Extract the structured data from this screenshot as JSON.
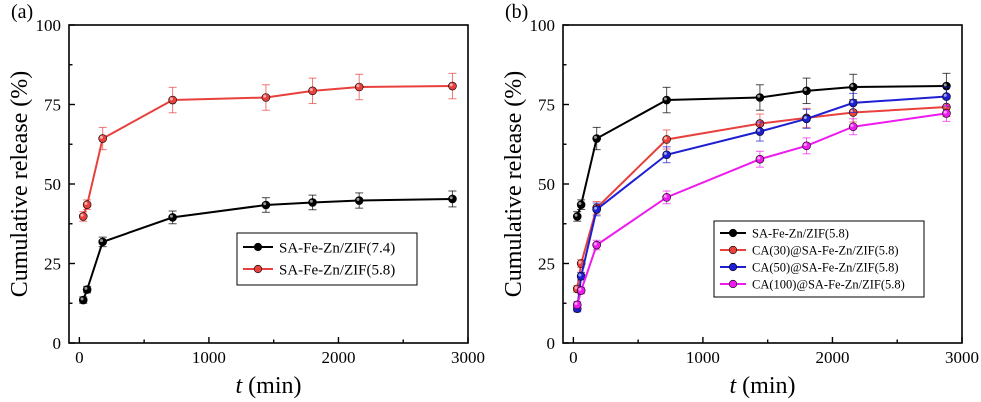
{
  "chart_data": [
    {
      "type": "line",
      "panel_label": "(a)",
      "xlabel_italic": "t",
      "xlabel_rest": " (min)",
      "ylabel": "Cumulative release (%)",
      "xlim": [
        -80,
        3000
      ],
      "ylim": [
        0,
        100
      ],
      "xticks": [
        0,
        1000,
        2000,
        3000
      ],
      "yticks": [
        0,
        25,
        50,
        75,
        100
      ],
      "legend_position": "center-right",
      "series": [
        {
          "name": "SA-Fe-Zn/ZIF(7.4)",
          "color": "#000000",
          "x": [
            30,
            60,
            180,
            720,
            1440,
            1800,
            2160,
            2880
          ],
          "y": [
            13.5,
            16.8,
            31.8,
            39.5,
            43.4,
            44.2,
            44.8,
            45.3
          ],
          "err": [
            1.0,
            1.0,
            1.5,
            2.0,
            2.3,
            2.3,
            2.4,
            2.5
          ]
        },
        {
          "name": "SA-Fe-Zn/ZIF(5.8)",
          "color": "#e8403c",
          "x": [
            30,
            60,
            180,
            720,
            1440,
            1800,
            2160,
            2880
          ],
          "y": [
            39.8,
            43.5,
            64.3,
            76.4,
            77.2,
            79.3,
            80.5,
            80.8
          ],
          "err": [
            1.5,
            1.5,
            3.5,
            4.0,
            4.0,
            4.0,
            4.0,
            4.0
          ]
        }
      ]
    },
    {
      "type": "line",
      "panel_label": "(b)",
      "xlabel_italic": "t",
      "xlabel_rest": " (min)",
      "ylabel": "Cumulative release (%)",
      "xlim": [
        -80,
        3000
      ],
      "ylim": [
        0,
        100
      ],
      "xticks": [
        0,
        1000,
        2000,
        3000
      ],
      "yticks": [
        0,
        25,
        50,
        75,
        100
      ],
      "legend_position": "lower-right",
      "series": [
        {
          "name": "SA-Fe-Zn/ZIF(5.8)",
          "color": "#000000",
          "x": [
            30,
            60,
            180,
            720,
            1440,
            1800,
            2160,
            2880
          ],
          "y": [
            39.8,
            43.5,
            64.3,
            76.4,
            77.2,
            79.3,
            80.5,
            80.8
          ],
          "err": [
            1.5,
            1.5,
            3.5,
            4.0,
            4.0,
            4.0,
            4.0,
            4.0
          ]
        },
        {
          "name": "CA(30)@SA-Fe-Zn/ZIF(5.8)",
          "color": "#e8403c",
          "x": [
            30,
            60,
            180,
            720,
            1440,
            1800,
            2160,
            2880
          ],
          "y": [
            17.0,
            25.0,
            42.5,
            64.0,
            69.0,
            70.8,
            72.5,
            74.2
          ],
          "err": [
            1.0,
            1.2,
            2.0,
            3.0,
            3.0,
            3.0,
            3.0,
            3.0
          ]
        },
        {
          "name": "CA(50)@SA-Fe-Zn/ZIF(5.8)",
          "color": "#1e1ed2",
          "x": [
            30,
            60,
            180,
            720,
            1440,
            1800,
            2160,
            2880
          ],
          "y": [
            10.8,
            21.0,
            42.0,
            59.2,
            66.5,
            70.5,
            75.5,
            77.5
          ],
          "err": [
            1.0,
            1.2,
            2.0,
            2.5,
            3.0,
            3.0,
            3.0,
            3.0
          ]
        },
        {
          "name": "CA(100)@SA-Fe-Zn/ZIF(5.8)",
          "color": "#ee1aee",
          "x": [
            30,
            60,
            180,
            720,
            1440,
            1800,
            2160,
            2880
          ],
          "y": [
            12.0,
            16.5,
            30.8,
            45.8,
            57.8,
            62.0,
            68.0,
            72.2
          ],
          "err": [
            1.0,
            1.0,
            1.5,
            2.0,
            2.5,
            2.5,
            2.5,
            2.5
          ]
        }
      ]
    }
  ]
}
